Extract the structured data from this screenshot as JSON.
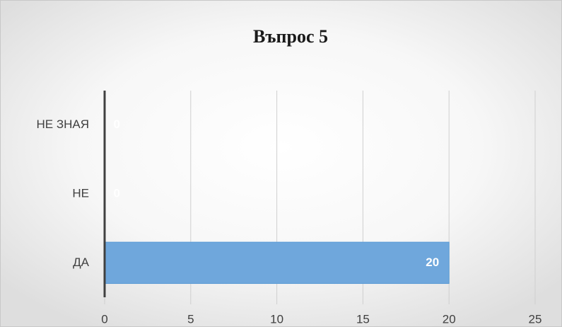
{
  "chart_data": {
    "type": "barh",
    "title": "Въпрос 5",
    "categories": [
      "ДА",
      "НЕ",
      "НЕ ЗНАЯ"
    ],
    "values": [
      20,
      0,
      0
    ],
    "color": "#6fa7dc",
    "xlim": [
      0,
      25
    ],
    "xticks": [
      0,
      5,
      10,
      15,
      20,
      25
    ],
    "grid": true,
    "data_labels": true
  }
}
